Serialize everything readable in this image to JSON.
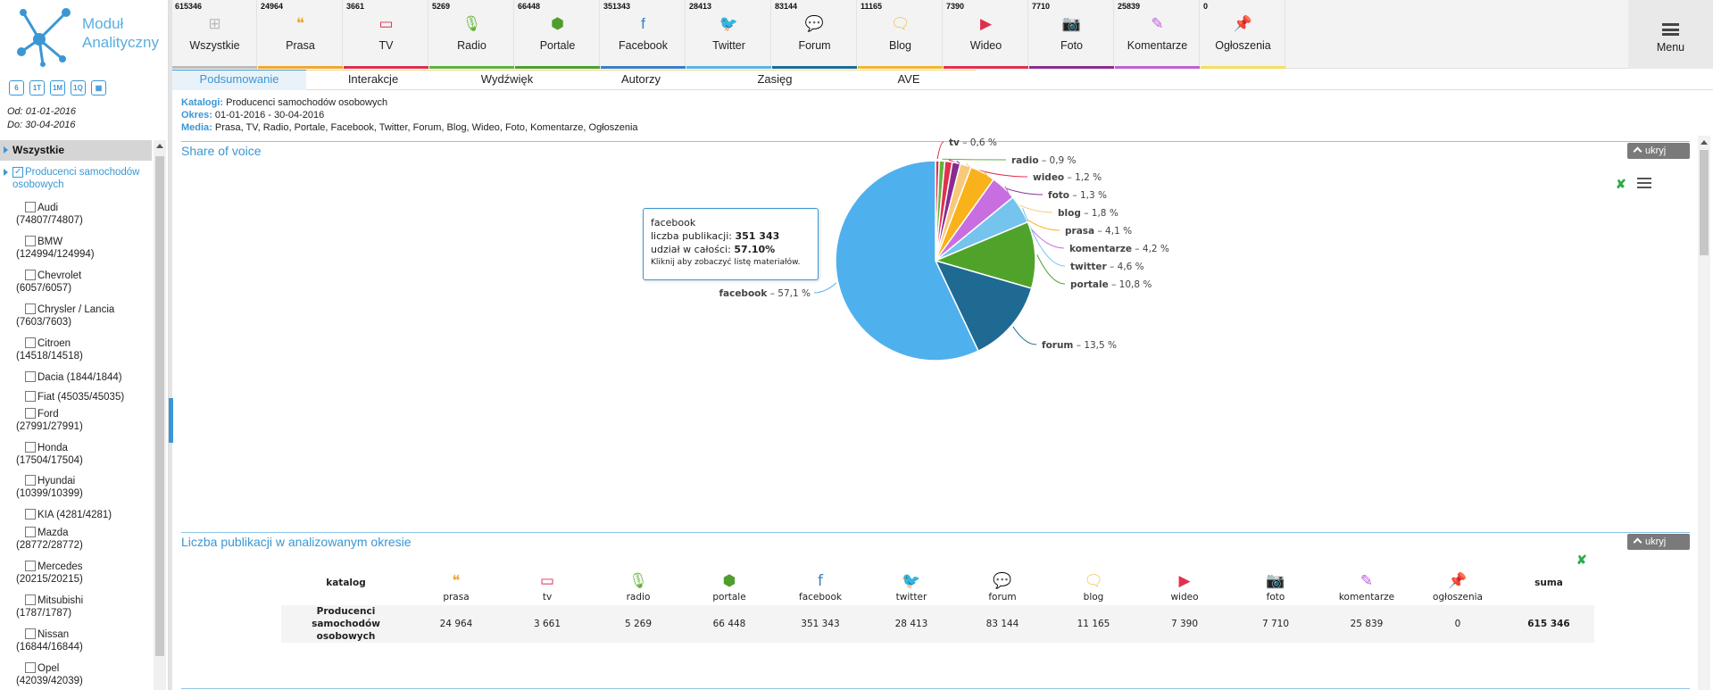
{
  "app": {
    "logo_line1": "Moduł",
    "logo_line2": "Analityczny"
  },
  "sidebar": {
    "date_buttons": [
      "6",
      "1T",
      "1M",
      "1Q",
      "cal"
    ],
    "date_from": "Od: 01-01-2016",
    "date_to": "Do: 30-04-2016",
    "tree_header": "Wszystkie",
    "root": "Producenci samochodów osobowych",
    "items": [
      {
        "line1": "Audi",
        "line2": "(74807/74807)"
      },
      {
        "line1": "BMW",
        "line2": "(124994/124994)"
      },
      {
        "line1": "Chevrolet",
        "line2": "(6057/6057)"
      },
      {
        "line1": "Chrysler / Lancia",
        "line2": "(7603/7603)"
      },
      {
        "line1": "Citroen",
        "line2": "(14518/14518)"
      },
      {
        "line1": "Dacia (1844/1844)",
        "line2": ""
      },
      {
        "line1": "Fiat (45035/45035)",
        "line2": ""
      },
      {
        "line1": "Ford",
        "line2": "(27991/27991)"
      },
      {
        "line1": "Honda",
        "line2": "(17504/17504)"
      },
      {
        "line1": "Hyundai",
        "line2": "(10399/10399)"
      },
      {
        "line1": "KIA (4281/4281)",
        "line2": ""
      },
      {
        "line1": "Mazda",
        "line2": "(28772/28772)"
      },
      {
        "line1": "Mercedes",
        "line2": "(20215/20215)"
      },
      {
        "line1": "Mitsubishi",
        "line2": "(1787/1787)"
      },
      {
        "line1": "Nissan",
        "line2": "(16844/16844)"
      },
      {
        "line1": "Opel",
        "line2": "(42039/42039)"
      }
    ]
  },
  "media_tabs": [
    {
      "count": "615346",
      "name": "Wszystkie",
      "color": "#bbbbbb",
      "icon": "grid-icon",
      "glyph": "⊞"
    },
    {
      "count": "24964",
      "name": "Prasa",
      "color": "#f0a830",
      "icon": "quote-icon",
      "glyph": "❝"
    },
    {
      "count": "3661",
      "name": "TV",
      "color": "#d9304f",
      "icon": "tv-icon",
      "glyph": "▭"
    },
    {
      "count": "5269",
      "name": "Radio",
      "color": "#62b239",
      "icon": "microphone-icon",
      "glyph": "🎙"
    },
    {
      "count": "66448",
      "name": "Portale",
      "color": "#4f9e2c",
      "icon": "cube-icon",
      "glyph": "⬢"
    },
    {
      "count": "351343",
      "name": "Facebook",
      "color": "#3a7fc2",
      "icon": "facebook-icon",
      "glyph": "f"
    },
    {
      "count": "28413",
      "name": "Twitter",
      "color": "#5ab4e8",
      "icon": "twitter-icon",
      "glyph": "🐦"
    },
    {
      "count": "83144",
      "name": "Forum",
      "color": "#1e6a92",
      "icon": "chat-icon",
      "glyph": "💬"
    },
    {
      "count": "11165",
      "name": "Blog",
      "color": "#f0b630",
      "icon": "speech-icon",
      "glyph": "🗨"
    },
    {
      "count": "7390",
      "name": "Wideo",
      "color": "#e0304f",
      "icon": "play-icon",
      "glyph": "▶"
    },
    {
      "count": "7710",
      "name": "Foto",
      "color": "#8a2c8f",
      "icon": "camera-icon",
      "glyph": "📷"
    },
    {
      "count": "25839",
      "name": "Komentarze",
      "color": "#c05fd6",
      "icon": "pencil-icon",
      "glyph": "✎"
    },
    {
      "count": "0",
      "name": "Ogłoszenia",
      "color": "#f5dd62",
      "icon": "pin-icon",
      "glyph": "📌"
    }
  ],
  "menu": {
    "label": "Menu"
  },
  "sub_tabs": [
    "Podsumowanie",
    "Interakcje",
    "Wydźwięk",
    "Autorzy",
    "Zasięg",
    "AVE"
  ],
  "filters": {
    "catalog_key": "Katalogi:",
    "catalog_val": "Producenci samochodów osobowych",
    "period_key": "Okres:",
    "period_val": "01-01-2016 - 30-04-2016",
    "media_key": "Media:",
    "media_val": "Prasa, TV, Radio, Portale, Facebook, Twitter, Forum, Blog, Wideo, Foto, Komentarze, Ogłoszenia"
  },
  "panel1": {
    "title": "Share of voice",
    "hide": "ukryj"
  },
  "panel2": {
    "title": "Liczba publikacji w analizowanym okresie",
    "hide": "ukryj"
  },
  "tooltip": {
    "name": "facebook",
    "pubs_label": "liczba publikacji:",
    "pubs_value": "351 343",
    "share_label": "udział w całości:",
    "share_value": "57.10%",
    "hint": "Kliknij aby zobaczyć listę materiałów."
  },
  "chart_data": {
    "type": "pie",
    "title": "Share of voice",
    "slices": [
      {
        "name": "tv",
        "value": 0.6,
        "label": "tv – 0,6 %",
        "color": "#d9304f"
      },
      {
        "name": "radio",
        "value": 0.9,
        "label": "radio – 0,9 %",
        "color": "#62b239"
      },
      {
        "name": "wideo",
        "value": 1.2,
        "label": "wideo – 1,2 %",
        "color": "#e0304f"
      },
      {
        "name": "foto",
        "value": 1.3,
        "label": "foto – 1,3 %",
        "color": "#8a2c8f"
      },
      {
        "name": "blog",
        "value": 1.8,
        "label": "blog – 1,8 %",
        "color": "#f7c97a"
      },
      {
        "name": "prasa",
        "value": 4.1,
        "label": "prasa – 4,1 %",
        "color": "#f9b21a"
      },
      {
        "name": "komentarze",
        "value": 4.2,
        "label": "komentarze – 4,2 %",
        "color": "#c76fe0"
      },
      {
        "name": "twitter",
        "value": 4.6,
        "label": "twitter – 4,6 %",
        "color": "#74c4ee"
      },
      {
        "name": "portale",
        "value": 10.8,
        "label": "portale – 10,8 %",
        "color": "#4fa32a"
      },
      {
        "name": "forum",
        "value": 13.5,
        "label": "forum – 13,5 %",
        "color": "#1e6a92"
      },
      {
        "name": "facebook",
        "value": 57.1,
        "label": "facebook – 57,1 %",
        "color": "#4fb0ee"
      }
    ]
  },
  "table": {
    "header_first": "katalog",
    "header_sum": "suma",
    "columns": [
      {
        "name": "prasa",
        "color": "#f0a830",
        "glyph": "❝",
        "icon": "quote-icon"
      },
      {
        "name": "tv",
        "color": "#d9304f",
        "glyph": "▭",
        "icon": "tv-icon"
      },
      {
        "name": "radio",
        "color": "#62b239",
        "glyph": "🎙",
        "icon": "microphone-icon"
      },
      {
        "name": "portale",
        "color": "#4f9e2c",
        "glyph": "⬢",
        "icon": "cube-icon"
      },
      {
        "name": "facebook",
        "color": "#3a7fc2",
        "glyph": "f",
        "icon": "facebook-icon"
      },
      {
        "name": "twitter",
        "color": "#5ab4e8",
        "glyph": "🐦",
        "icon": "twitter-icon"
      },
      {
        "name": "forum",
        "color": "#1e6a92",
        "glyph": "💬",
        "icon": "chat-icon"
      },
      {
        "name": "blog",
        "color": "#f0b630",
        "glyph": "🗨",
        "icon": "speech-icon"
      },
      {
        "name": "wideo",
        "color": "#e0304f",
        "glyph": "▶",
        "icon": "play-icon"
      },
      {
        "name": "foto",
        "color": "#8a2c8f",
        "glyph": "📷",
        "icon": "camera-icon"
      },
      {
        "name": "komentarze",
        "color": "#c05fd6",
        "glyph": "✎",
        "icon": "pencil-icon"
      },
      {
        "name": "ogłoszenia",
        "color": "#f5dd62",
        "glyph": "📌",
        "icon": "pin-icon"
      }
    ],
    "row": {
      "name": "Producenci samochodów osobowych",
      "values": [
        "24 964",
        "3 661",
        "5 269",
        "66 448",
        "351 343",
        "28 413",
        "83 144",
        "11 165",
        "7 390",
        "7 710",
        "25 839",
        "0"
      ],
      "sum": "615 346"
    }
  }
}
